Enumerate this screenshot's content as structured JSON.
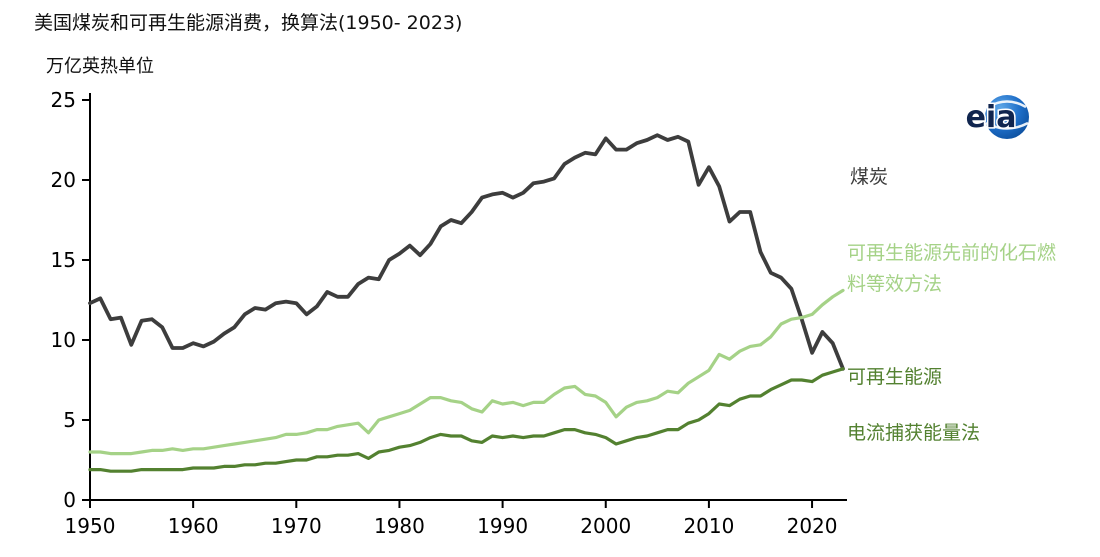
{
  "header": {
    "title": "美国煤炭和可再生能源消费，换算法(1950- 2023)",
    "unit_label": "万亿英热单位"
  },
  "logo": {
    "text": "eia",
    "ball_color": "#1f6fc9"
  },
  "right_labels": {
    "coal": "煤炭",
    "prior_method": "可再生能源先前的化石燃料等效方法",
    "renewables": "可再生能源",
    "current_method": "电流捕获能量法"
  },
  "chart_data": {
    "type": "line",
    "title": "美国煤炭和可再生能源消费，换算法(1950- 2023)",
    "xlabel": "",
    "ylabel": "万亿英热单位",
    "ylim": [
      0,
      25
    ],
    "yticks": [
      0,
      5,
      10,
      15,
      20,
      25
    ],
    "xticks": [
      1950,
      1960,
      1970,
      1980,
      1990,
      2000,
      2010,
      2020
    ],
    "grid": false,
    "legend_position": "right",
    "x": [
      1950,
      1951,
      1952,
      1953,
      1954,
      1955,
      1956,
      1957,
      1958,
      1959,
      1960,
      1961,
      1962,
      1963,
      1964,
      1965,
      1966,
      1967,
      1968,
      1969,
      1970,
      1971,
      1972,
      1973,
      1974,
      1975,
      1976,
      1977,
      1978,
      1979,
      1980,
      1981,
      1982,
      1983,
      1984,
      1985,
      1986,
      1987,
      1988,
      1989,
      1990,
      1991,
      1992,
      1993,
      1994,
      1995,
      1996,
      1997,
      1998,
      1999,
      2000,
      2001,
      2002,
      2003,
      2004,
      2005,
      2006,
      2007,
      2008,
      2009,
      2010,
      2011,
      2012,
      2013,
      2014,
      2015,
      2016,
      2017,
      2018,
      2019,
      2020,
      2021,
      2022,
      2023
    ],
    "series": [
      {
        "name": "煤炭",
        "color": "#3d3d3d",
        "values": [
          12.3,
          12.6,
          11.3,
          11.4,
          9.7,
          11.2,
          11.3,
          10.8,
          9.5,
          9.5,
          9.8,
          9.6,
          9.9,
          10.4,
          10.8,
          11.6,
          12.0,
          11.9,
          12.3,
          12.4,
          12.3,
          11.6,
          12.1,
          13.0,
          12.7,
          12.7,
          13.5,
          13.9,
          13.8,
          15.0,
          15.4,
          15.9,
          15.3,
          16.0,
          17.1,
          17.5,
          17.3,
          18.0,
          18.9,
          19.1,
          19.2,
          18.9,
          19.2,
          19.8,
          19.9,
          20.1,
          21.0,
          21.4,
          21.7,
          21.6,
          22.6,
          21.9,
          21.9,
          22.3,
          22.5,
          22.8,
          22.5,
          22.7,
          22.4,
          19.7,
          20.8,
          19.6,
          17.4,
          18.0,
          18.0,
          15.5,
          14.2,
          13.9,
          13.2,
          11.3,
          9.2,
          10.5,
          9.8,
          8.2
        ]
      },
      {
        "name": "可再生能源先前的化石燃料等效方法",
        "color": "#a5d287",
        "values": [
          3.0,
          3.0,
          2.9,
          2.9,
          2.9,
          3.0,
          3.1,
          3.1,
          3.2,
          3.1,
          3.2,
          3.2,
          3.3,
          3.4,
          3.5,
          3.6,
          3.7,
          3.8,
          3.9,
          4.1,
          4.1,
          4.2,
          4.4,
          4.4,
          4.6,
          4.7,
          4.8,
          4.2,
          5.0,
          5.2,
          5.4,
          5.6,
          6.0,
          6.4,
          6.4,
          6.2,
          6.1,
          5.7,
          5.5,
          6.2,
          6.0,
          6.1,
          5.9,
          6.1,
          6.1,
          6.6,
          7.0,
          7.1,
          6.6,
          6.5,
          6.1,
          5.2,
          5.8,
          6.1,
          6.2,
          6.4,
          6.8,
          6.7,
          7.3,
          7.7,
          8.1,
          9.1,
          8.8,
          9.3,
          9.6,
          9.7,
          10.2,
          11.0,
          11.3,
          11.4,
          11.6,
          12.2,
          12.7,
          13.1
        ]
      },
      {
        "name": "可再生能源电流捕获能量法",
        "color": "#538130",
        "values": [
          1.9,
          1.9,
          1.8,
          1.8,
          1.8,
          1.9,
          1.9,
          1.9,
          1.9,
          1.9,
          2.0,
          2.0,
          2.0,
          2.1,
          2.1,
          2.2,
          2.2,
          2.3,
          2.3,
          2.4,
          2.5,
          2.5,
          2.7,
          2.7,
          2.8,
          2.8,
          2.9,
          2.6,
          3.0,
          3.1,
          3.3,
          3.4,
          3.6,
          3.9,
          4.1,
          4.0,
          4.0,
          3.7,
          3.6,
          4.0,
          3.9,
          4.0,
          3.9,
          4.0,
          4.0,
          4.2,
          4.4,
          4.4,
          4.2,
          4.1,
          3.9,
          3.5,
          3.7,
          3.9,
          4.0,
          4.2,
          4.4,
          4.4,
          4.8,
          5.0,
          5.4,
          6.0,
          5.9,
          6.3,
          6.5,
          6.5,
          6.9,
          7.2,
          7.5,
          7.5,
          7.4,
          7.8,
          8.0,
          8.2
        ]
      }
    ]
  }
}
